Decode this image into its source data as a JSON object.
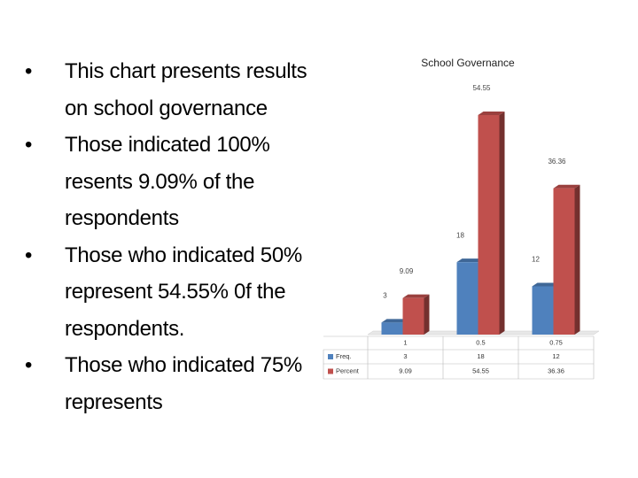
{
  "bullets": [
    "This chart presents results on school governance",
    "Those indicated 100% resents 9.09% of the respondents",
    "Those who indicated 50% represent 54.55% 0f the respondents.",
    "Those who indicated 75% represents"
  ],
  "chart_data": {
    "type": "bar",
    "title": "School Governance",
    "categories": [
      "1",
      "0.5",
      "0.75"
    ],
    "series": [
      {
        "name": "Freq.",
        "color": "#4f81bd",
        "values": [
          3,
          18,
          12
        ]
      },
      {
        "name": "Percent",
        "color": "#c0504d",
        "values": [
          9.09,
          54.55,
          36.36
        ]
      }
    ]
  }
}
